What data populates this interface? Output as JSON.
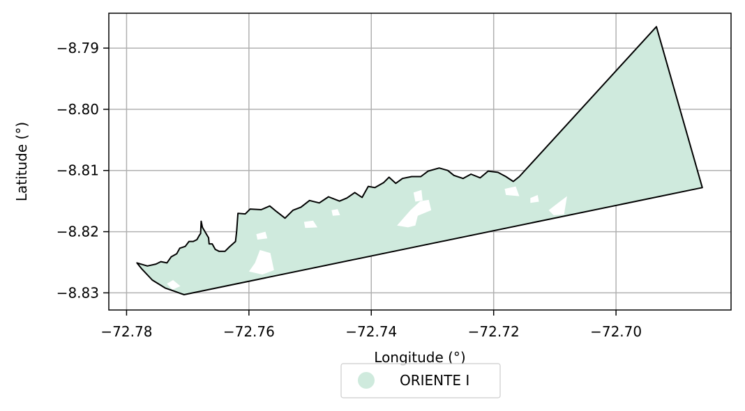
{
  "chart_data": {
    "type": "map",
    "xlabel": "Longitude (°)",
    "ylabel": "Latitude (°)",
    "xlim": [
      -72.7829,
      -72.6812
    ],
    "ylim": [
      -8.8328,
      -8.7843
    ],
    "x_ticks": [
      -72.78,
      -72.76,
      -72.74,
      -72.72,
      -72.7
    ],
    "x_tick_labels": [
      "−72.78",
      "−72.76",
      "−72.74",
      "−72.72",
      "−72.70"
    ],
    "y_ticks": [
      -8.79,
      -8.8,
      -8.81,
      -8.82,
      -8.83
    ],
    "y_tick_labels": [
      "−8.79",
      "−8.80",
      "−8.81",
      "−8.82",
      "−8.83"
    ],
    "grid": true,
    "legend": {
      "placement": "bottom-center",
      "entries": [
        {
          "label": "ORIENTE I",
          "color": "#cfeadd"
        }
      ]
    },
    "region": {
      "name": "ORIENTE I",
      "fill": "#cfeadd",
      "edge": "#000000",
      "boundary_lonlat": [
        [
          -72.6934,
          -8.7865
        ],
        [
          -72.6859,
          -8.8128
        ],
        [
          -72.7706,
          -8.8303
        ],
        [
          -72.7737,
          -8.8292
        ],
        [
          -72.7758,
          -8.8279
        ],
        [
          -72.7775,
          -8.8261
        ],
        [
          -72.7783,
          -8.8251
        ],
        [
          -72.7766,
          -8.8256
        ],
        [
          -72.7752,
          -8.8253
        ],
        [
          -72.7744,
          -8.8249
        ],
        [
          -72.7734,
          -8.8251
        ],
        [
          -72.7727,
          -8.8241
        ],
        [
          -72.7718,
          -8.8236
        ],
        [
          -72.7713,
          -8.8227
        ],
        [
          -72.7704,
          -8.8224
        ],
        [
          -72.7698,
          -8.8216
        ],
        [
          -72.7691,
          -8.8216
        ],
        [
          -72.7685,
          -8.8213
        ],
        [
          -72.7681,
          -8.8206
        ],
        [
          -72.7679,
          -8.8203
        ],
        [
          -72.7678,
          -8.8183
        ],
        [
          -72.7676,
          -8.8193
        ],
        [
          -72.7666,
          -8.821
        ],
        [
          -72.7665,
          -8.822
        ],
        [
          -72.766,
          -8.822
        ],
        [
          -72.7655,
          -8.8229
        ],
        [
          -72.7649,
          -8.8232
        ],
        [
          -72.7639,
          -8.8232
        ],
        [
          -72.7632,
          -8.8225
        ],
        [
          -72.7622,
          -8.8216
        ],
        [
          -72.762,
          -8.8199
        ],
        [
          -72.7618,
          -8.817
        ],
        [
          -72.7606,
          -8.8171
        ],
        [
          -72.7598,
          -8.8163
        ],
        [
          -72.758,
          -8.8164
        ],
        [
          -72.7566,
          -8.8158
        ],
        [
          -72.7555,
          -8.8167
        ],
        [
          -72.7541,
          -8.8178
        ],
        [
          -72.7528,
          -8.8165
        ],
        [
          -72.7515,
          -8.816
        ],
        [
          -72.7501,
          -8.8149
        ],
        [
          -72.7485,
          -8.8153
        ],
        [
          -72.747,
          -8.8143
        ],
        [
          -72.7452,
          -8.815
        ],
        [
          -72.744,
          -8.8145
        ],
        [
          -72.7427,
          -8.8136
        ],
        [
          -72.7415,
          -8.8144
        ],
        [
          -72.7405,
          -8.8126
        ],
        [
          -72.7394,
          -8.8128
        ],
        [
          -72.738,
          -8.812
        ],
        [
          -72.7371,
          -8.8111
        ],
        [
          -72.736,
          -8.8121
        ],
        [
          -72.7349,
          -8.8113
        ],
        [
          -72.7334,
          -8.811
        ],
        [
          -72.7319,
          -8.811
        ],
        [
          -72.7307,
          -8.8101
        ],
        [
          -72.7289,
          -8.8096
        ],
        [
          -72.7275,
          -8.81
        ],
        [
          -72.7265,
          -8.8108
        ],
        [
          -72.725,
          -8.8113
        ],
        [
          -72.7237,
          -8.8106
        ],
        [
          -72.7222,
          -8.8112
        ],
        [
          -72.7209,
          -8.8101
        ],
        [
          -72.7193,
          -8.8103
        ],
        [
          -72.718,
          -8.811
        ],
        [
          -72.7168,
          -8.8118
        ],
        [
          -72.7158,
          -8.811
        ],
        [
          -72.6934,
          -8.7865
        ]
      ],
      "gaps_lonlat": [
        [
          [
            -72.7734,
            -8.8285
          ],
          [
            -72.7724,
            -8.8279
          ],
          [
            -72.7712,
            -8.8289
          ],
          [
            -72.7725,
            -8.8295
          ]
        ],
        [
          [
            -72.76,
            -8.8265
          ],
          [
            -72.759,
            -8.8251
          ],
          [
            -72.7582,
            -8.823
          ],
          [
            -72.7565,
            -8.8235
          ],
          [
            -72.7559,
            -8.8263
          ],
          [
            -72.7578,
            -8.827
          ]
        ],
        [
          [
            -72.7588,
            -8.8204
          ],
          [
            -72.7573,
            -8.82
          ],
          [
            -72.757,
            -8.8211
          ],
          [
            -72.7586,
            -8.8213
          ]
        ],
        [
          [
            -72.751,
            -8.8184
          ],
          [
            -72.7495,
            -8.8182
          ],
          [
            -72.7488,
            -8.8193
          ],
          [
            -72.7508,
            -8.8194
          ]
        ],
        [
          [
            -72.7465,
            -8.8165
          ],
          [
            -72.7455,
            -8.8163
          ],
          [
            -72.7451,
            -8.8173
          ],
          [
            -72.7463,
            -8.8174
          ]
        ],
        [
          [
            -72.7358,
            -8.819
          ],
          [
            -72.7336,
            -8.8165
          ],
          [
            -72.732,
            -8.815
          ],
          [
            -72.7306,
            -8.8148
          ],
          [
            -72.7302,
            -8.8165
          ],
          [
            -72.7324,
            -8.8174
          ],
          [
            -72.7328,
            -8.819
          ],
          [
            -72.734,
            -8.8193
          ]
        ],
        [
          [
            -72.7331,
            -8.8136
          ],
          [
            -72.7318,
            -8.8132
          ],
          [
            -72.7316,
            -8.8149
          ],
          [
            -72.7328,
            -8.8151
          ]
        ],
        [
          [
            -72.7182,
            -8.813
          ],
          [
            -72.7164,
            -8.8126
          ],
          [
            -72.7158,
            -8.8142
          ],
          [
            -72.718,
            -8.814
          ]
        ],
        [
          [
            -72.714,
            -8.8145
          ],
          [
            -72.7128,
            -8.814
          ],
          [
            -72.7126,
            -8.8151
          ],
          [
            -72.714,
            -8.8153
          ]
        ],
        [
          [
            -72.711,
            -8.8165
          ],
          [
            -72.7092,
            -8.8151
          ],
          [
            -72.708,
            -8.8142
          ],
          [
            -72.7085,
            -8.8172
          ],
          [
            -72.7102,
            -8.8173
          ]
        ]
      ]
    }
  }
}
